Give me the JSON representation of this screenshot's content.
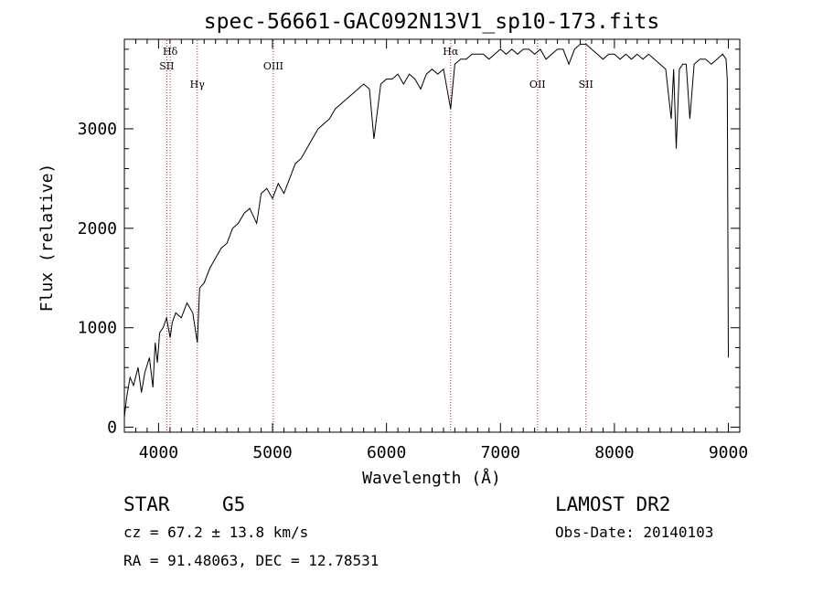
{
  "chart_data": {
    "type": "line",
    "title": "spec-56661-GAC092N13V1_sp10-173.fits",
    "xlabel": "Wavelength (Å)",
    "ylabel": "Flux (relative)",
    "xlim": [
      3700,
      9100
    ],
    "ylim": [
      -50,
      3900
    ],
    "xticks": [
      4000,
      5000,
      6000,
      7000,
      8000,
      9000
    ],
    "yticks": [
      0,
      1000,
      2000,
      3000
    ],
    "series": [
      {
        "x": [
          3700,
          3720,
          3750,
          3780,
          3820,
          3850,
          3880,
          3920,
          3950,
          3970,
          3990,
          4010,
          4040,
          4070,
          4102,
          4120,
          4150,
          4200,
          4250,
          4300,
          4340,
          4360,
          4400,
          4450,
          4500,
          4550,
          4600,
          4650,
          4700,
          4750,
          4800,
          4861,
          4900,
          4950,
          5000,
          5050,
          5100,
          5150,
          5200,
          5250,
          5300,
          5350,
          5400,
          5450,
          5500,
          5550,
          5600,
          5650,
          5700,
          5750,
          5800,
          5850,
          5890,
          5950,
          6000,
          6050,
          6100,
          6150,
          6200,
          6250,
          6300,
          6350,
          6400,
          6450,
          6500,
          6563,
          6600,
          6650,
          6700,
          6750,
          6800,
          6850,
          6900,
          6950,
          7000,
          7050,
          7100,
          7150,
          7200,
          7250,
          7300,
          7350,
          7400,
          7450,
          7500,
          7550,
          7600,
          7650,
          7700,
          7750,
          7800,
          7850,
          7900,
          7950,
          8000,
          8050,
          8100,
          8150,
          8200,
          8250,
          8300,
          8350,
          8400,
          8450,
          8498,
          8520,
          8542,
          8570,
          8600,
          8630,
          8662,
          8700,
          8750,
          8800,
          8850,
          8900,
          8950,
          8980,
          8990,
          9000
        ],
        "y": [
          100,
          300,
          500,
          420,
          600,
          350,
          550,
          700,
          400,
          850,
          650,
          950,
          1000,
          1100,
          900,
          1050,
          1150,
          1100,
          1250,
          1150,
          850,
          1400,
          1450,
          1600,
          1700,
          1800,
          1850,
          2000,
          2050,
          2150,
          2200,
          2050,
          2350,
          2400,
          2300,
          2450,
          2350,
          2500,
          2650,
          2700,
          2800,
          2900,
          3000,
          3050,
          3100,
          3200,
          3250,
          3300,
          3350,
          3400,
          3450,
          3400,
          2900,
          3450,
          3500,
          3500,
          3550,
          3450,
          3550,
          3500,
          3400,
          3550,
          3600,
          3550,
          3600,
          3200,
          3650,
          3700,
          3700,
          3750,
          3750,
          3750,
          3700,
          3750,
          3800,
          3750,
          3800,
          3750,
          3800,
          3800,
          3750,
          3800,
          3700,
          3750,
          3800,
          3800,
          3650,
          3800,
          3850,
          3850,
          3800,
          3750,
          3700,
          3750,
          3750,
          3700,
          3750,
          3700,
          3750,
          3700,
          3750,
          3700,
          3650,
          3600,
          3100,
          3600,
          2800,
          3600,
          3650,
          3650,
          3100,
          3650,
          3700,
          3700,
          3650,
          3700,
          3750,
          3700,
          3500,
          700
        ]
      }
    ],
    "lines": [
      {
        "label": "Hδ",
        "x": 4102,
        "row": 0
      },
      {
        "label": "SII",
        "x": 4072,
        "row": 1
      },
      {
        "label": "Hγ",
        "x": 4340,
        "row": 2
      },
      {
        "label": "OIII",
        "x": 5007,
        "row": 1
      },
      {
        "label": "Hα",
        "x": 6563,
        "row": 0
      },
      {
        "label": "OII",
        "x": 7325,
        "row": 2
      },
      {
        "label": "SII",
        "x": 7750,
        "row": 2
      }
    ],
    "grid": false,
    "line_color": "#000000",
    "marker_color": "#b22222"
  },
  "info": {
    "object_class": "STAR",
    "subclass": "G5",
    "survey": "LAMOST DR2",
    "cz": "cz = 67.2 ± 13.8 km/s",
    "obs_date": "Obs-Date: 20140103",
    "coords": "RA =  91.48063, DEC =  12.78531"
  }
}
